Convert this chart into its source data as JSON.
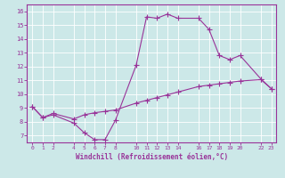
{
  "xlabel": "Windchill (Refroidissement éolien,°C)",
  "bg_color": "#cce8e8",
  "line_color": "#993399",
  "xlim": [
    -0.5,
    23.5
  ],
  "ylim": [
    6.5,
    16.5
  ],
  "yticks": [
    7,
    8,
    9,
    10,
    11,
    12,
    13,
    14,
    15,
    16
  ],
  "xticks": [
    0,
    1,
    2,
    4,
    5,
    6,
    7,
    8,
    10,
    11,
    12,
    13,
    14,
    16,
    17,
    18,
    19,
    20,
    22,
    23
  ],
  "series1_x": [
    0,
    1,
    2,
    4,
    5,
    6,
    7,
    8,
    10,
    11,
    12,
    13,
    14,
    16,
    17,
    18,
    19,
    20,
    22,
    23
  ],
  "series1_y": [
    9.1,
    8.3,
    8.5,
    7.9,
    7.2,
    6.7,
    6.7,
    8.1,
    12.1,
    15.6,
    15.5,
    15.8,
    15.5,
    15.5,
    14.7,
    12.8,
    12.5,
    12.8,
    11.1,
    10.4
  ],
  "series2_x": [
    0,
    1,
    2,
    4,
    5,
    6,
    7,
    8,
    10,
    11,
    12,
    13,
    14,
    16,
    17,
    18,
    19,
    20,
    22,
    23
  ],
  "series2_y": [
    9.1,
    8.3,
    8.6,
    8.2,
    8.5,
    8.65,
    8.75,
    8.85,
    9.35,
    9.55,
    9.75,
    9.95,
    10.15,
    10.55,
    10.65,
    10.75,
    10.85,
    10.95,
    11.05,
    10.4
  ]
}
